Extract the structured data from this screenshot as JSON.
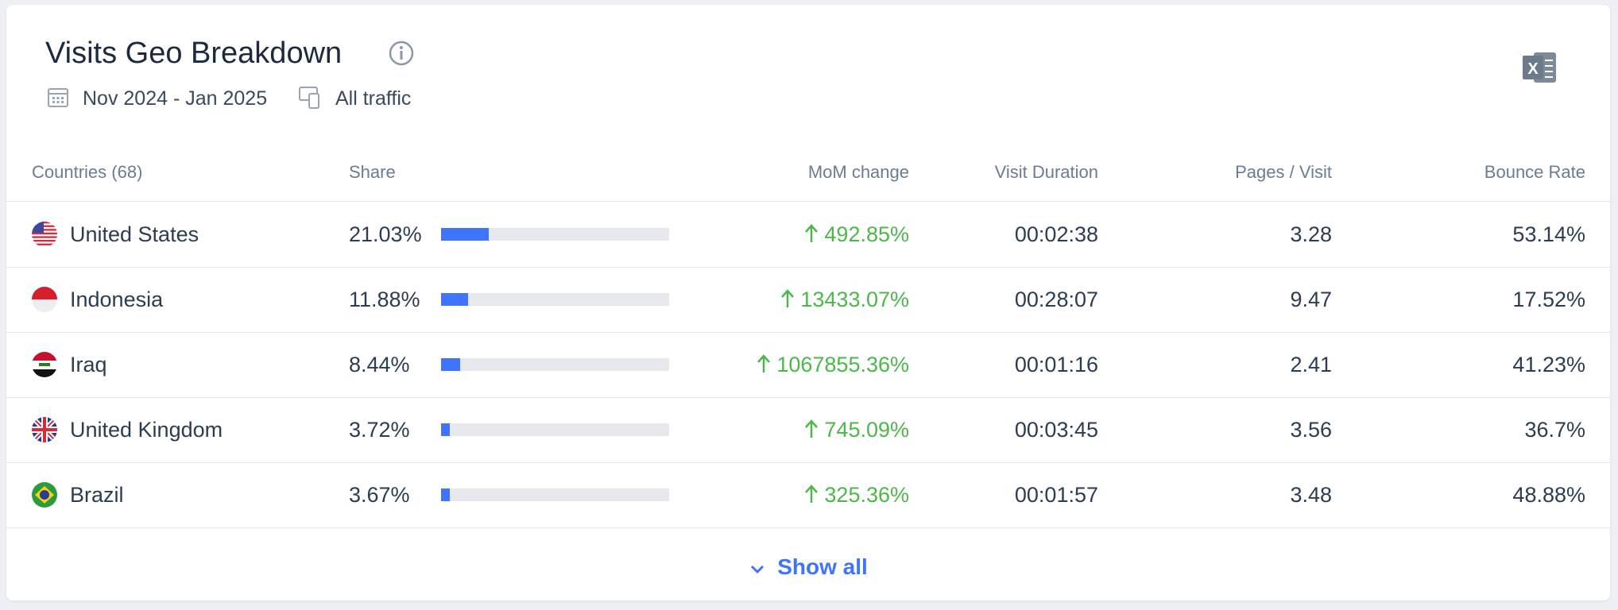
{
  "header": {
    "title": "Visits Geo Breakdown",
    "date_range": "Nov 2024 - Jan 2025",
    "traffic": "All traffic"
  },
  "table": {
    "columns": [
      "Countries (68)",
      "Share",
      "MoM change",
      "Visit Duration",
      "Pages / Visit",
      "Bounce Rate"
    ],
    "rows": [
      {
        "country": "United States",
        "share": {
          "value": 21.03,
          "label": "21.03%"
        },
        "mom": "492.85%",
        "duration": "00:02:38",
        "pages": 3.28,
        "bounce": "53.14%"
      },
      {
        "country": "Indonesia",
        "share": {
          "value": 11.88,
          "label": "11.88%"
        },
        "mom": "13433.07%",
        "duration": "00:28:07",
        "pages": 9.47,
        "bounce": "17.52%"
      },
      {
        "country": "Iraq",
        "share": {
          "value": 8.44,
          "label": "8.44%"
        },
        "mom": "1067855.36%",
        "duration": "00:01:16",
        "pages": 2.41,
        "bounce": "41.23%"
      },
      {
        "country": "United Kingdom",
        "share": {
          "value": 3.72,
          "label": "3.72%"
        },
        "mom": "745.09%",
        "duration": "00:03:45",
        "pages": 3.56,
        "bounce": "36.7%"
      },
      {
        "country": "Brazil",
        "share": {
          "value": 3.67,
          "label": "3.67%"
        },
        "mom": "325.36%",
        "duration": "00:01:57",
        "pages": 3.48,
        "bounce": "48.88%"
      }
    ]
  },
  "footer": {
    "show_all": "Show all"
  }
}
